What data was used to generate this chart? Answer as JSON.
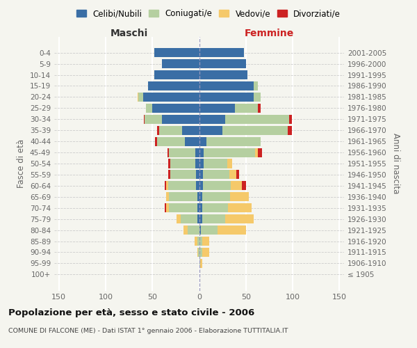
{
  "age_groups": [
    "100+",
    "95-99",
    "90-94",
    "85-89",
    "80-84",
    "75-79",
    "70-74",
    "65-69",
    "60-64",
    "55-59",
    "50-54",
    "45-49",
    "40-44",
    "35-39",
    "30-34",
    "25-29",
    "20-24",
    "15-19",
    "10-14",
    "5-9",
    "0-4"
  ],
  "birth_years": [
    "≤ 1905",
    "1906-1910",
    "1911-1915",
    "1916-1920",
    "1921-1925",
    "1926-1930",
    "1931-1935",
    "1936-1940",
    "1941-1945",
    "1946-1950",
    "1951-1955",
    "1956-1960",
    "1961-1965",
    "1966-1970",
    "1971-1975",
    "1976-1980",
    "1981-1985",
    "1986-1990",
    "1991-1995",
    "1996-2000",
    "2001-2005"
  ],
  "colors": {
    "celibe": "#3A6EA5",
    "coniugato": "#B5CFA0",
    "vedovo": "#F5C96A",
    "divorziato": "#CC2222"
  },
  "males": {
    "celibe": [
      0,
      0,
      0,
      0,
      0,
      2,
      2,
      2,
      3,
      3,
      4,
      4,
      15,
      18,
      40,
      50,
      60,
      55,
      48,
      40,
      48
    ],
    "coniugato": [
      0,
      0,
      1,
      2,
      12,
      18,
      30,
      30,
      30,
      28,
      27,
      28,
      30,
      25,
      18,
      7,
      5,
      0,
      0,
      0,
      0
    ],
    "vedovo": [
      0,
      0,
      1,
      3,
      5,
      4,
      3,
      3,
      2,
      0,
      0,
      0,
      0,
      0,
      0,
      0,
      1,
      0,
      0,
      0,
      0
    ],
    "divorziato": [
      0,
      0,
      0,
      0,
      0,
      0,
      2,
      0,
      2,
      2,
      2,
      2,
      2,
      2,
      1,
      0,
      0,
      0,
      0,
      0,
      0
    ]
  },
  "females": {
    "celibe": [
      0,
      0,
      0,
      0,
      2,
      3,
      3,
      3,
      4,
      4,
      5,
      5,
      8,
      25,
      28,
      38,
      58,
      58,
      52,
      50,
      48
    ],
    "coniugato": [
      0,
      1,
      3,
      3,
      18,
      25,
      28,
      30,
      30,
      28,
      25,
      55,
      58,
      70,
      68,
      25,
      8,
      5,
      0,
      0,
      0
    ],
    "vedovo": [
      0,
      2,
      8,
      8,
      30,
      30,
      25,
      20,
      12,
      8,
      5,
      3,
      0,
      0,
      0,
      0,
      0,
      0,
      0,
      0,
      0
    ],
    "divorziato": [
      0,
      0,
      0,
      0,
      0,
      0,
      0,
      0,
      4,
      3,
      0,
      4,
      0,
      4,
      3,
      3,
      0,
      0,
      0,
      0,
      0
    ]
  },
  "title": "Popolazione per età, sesso e stato civile - 2006",
  "subtitle": "COMUNE DI FALCONE (ME) - Dati ISTAT 1° gennaio 2006 - Elaborazione TUTTITALIA.IT",
  "xlabel_left": "Maschi",
  "xlabel_right": "Femmine",
  "ylabel_left": "Fasce di età",
  "ylabel_right": "Anni di nascita",
  "xlim": 155,
  "bg_color": "#f5f5ef",
  "legend_labels": [
    "Celibi/Nubili",
    "Coniugati/e",
    "Vedovi/e",
    "Divorziati/e"
  ]
}
